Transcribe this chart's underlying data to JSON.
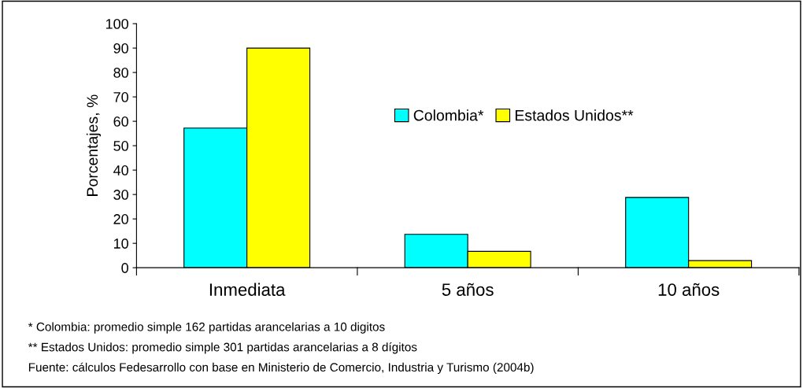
{
  "chart_data": {
    "type": "bar",
    "ylabel": "Porcentajes, %",
    "categories": [
      "Inmediata",
      "5 años",
      "10 años"
    ],
    "series": [
      {
        "name": "Colombia*",
        "color": "#00ffff",
        "values": [
          57.2,
          13.7,
          28.8
        ]
      },
      {
        "name": "Estados Unidos**",
        "color": "#ffff00",
        "values": [
          90,
          6.7,
          2.9
        ]
      }
    ],
    "ylim": [
      0,
      100
    ],
    "yticks": [
      0,
      10,
      20,
      30,
      40,
      50,
      60,
      70,
      80,
      90,
      100
    ],
    "grid": false,
    "legend": "center",
    "annotations": [
      "* Colombia: promedio simple 162 partidas arancelarias a 10 digitos",
      "** Estados Unidos: promedio simple 301 partidas arancelarias a 8 dígitos",
      "Fuente: cálculos Fedesarrollo con base en Ministerio de Comercio, Industria y Turismo (2004b)"
    ]
  }
}
